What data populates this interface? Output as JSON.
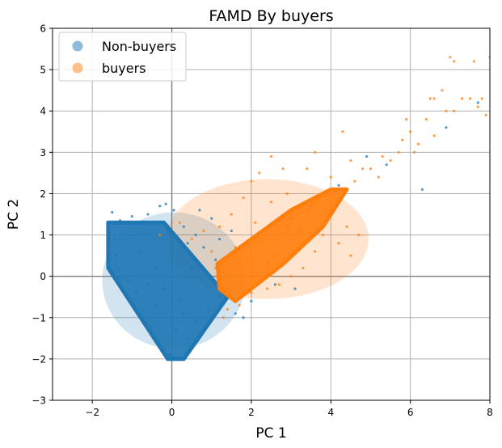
{
  "chart_data": {
    "type": "scatter",
    "title": "FAMD By buyers",
    "xlabel": "PC 1",
    "ylabel": "PC 2",
    "xlim": [
      -3,
      8
    ],
    "ylim": [
      -3,
      6
    ],
    "xticks": [
      -2,
      0,
      2,
      4,
      6,
      8
    ],
    "yticks": [
      -3,
      -2,
      -1,
      0,
      1,
      2,
      3,
      4,
      5,
      6
    ],
    "grid": true,
    "reference_lines": {
      "x": 0,
      "y": 0,
      "color": "#808080"
    },
    "legend": {
      "placement": "top-left",
      "entries": [
        "Non-buyers",
        "buyers"
      ]
    },
    "series": [
      {
        "name": "Non-buyers",
        "color": "#1f77b4",
        "ellipse": {
          "center": [
            0.05,
            -0.1
          ],
          "radius_x": 1.8,
          "radius_y": 1.65,
          "alpha": 0.2
        },
        "dense_region": [
          [
            -1.6,
            1.3
          ],
          [
            -0.2,
            1.3
          ],
          [
            1.4,
            -0.5
          ],
          [
            0.3,
            -2.0
          ],
          [
            -0.1,
            -2.0
          ],
          [
            -1.6,
            0.2
          ]
        ],
        "points": [
          [
            -1.5,
            1.55
          ],
          [
            -1.3,
            1.35
          ],
          [
            -1.0,
            1.45
          ],
          [
            -0.6,
            1.5
          ],
          [
            -0.3,
            1.7
          ],
          [
            -0.15,
            1.75
          ],
          [
            0.05,
            1.6
          ],
          [
            -1.45,
            0.9
          ],
          [
            -1.4,
            0.5
          ],
          [
            -1.3,
            0.2
          ],
          [
            -1.1,
            -0.1
          ],
          [
            -0.9,
            -0.4
          ],
          [
            -0.7,
            -0.8
          ],
          [
            -0.5,
            -1.2
          ],
          [
            -0.3,
            -1.6
          ],
          [
            -0.05,
            -1.9
          ],
          [
            0.2,
            -2.0
          ],
          [
            0.4,
            -1.5
          ],
          [
            0.6,
            -1.1
          ],
          [
            0.9,
            -0.8
          ],
          [
            1.2,
            -0.5
          ],
          [
            1.4,
            -0.3
          ],
          [
            1.3,
            0.1
          ],
          [
            1.1,
            0.4
          ],
          [
            0.8,
            0.7
          ],
          [
            0.6,
            1.0
          ],
          [
            0.3,
            1.2
          ],
          [
            0.0,
            0.5
          ],
          [
            -0.4,
            0.2
          ],
          [
            0.2,
            -0.6
          ],
          [
            -0.8,
            0.6
          ],
          [
            0.5,
            0.2
          ],
          [
            1.6,
            -0.9
          ],
          [
            1.8,
            -1.0
          ],
          [
            2.0,
            -0.6
          ],
          [
            2.4,
            0.3
          ],
          [
            2.9,
            1.2
          ],
          [
            3.5,
            1.7
          ],
          [
            5.4,
            2.7
          ],
          [
            6.3,
            2.1
          ],
          [
            6.9,
            3.6
          ],
          [
            7.7,
            4.2
          ],
          [
            4.9,
            2.9
          ],
          [
            4.2,
            2.2
          ],
          [
            3.1,
            -0.3
          ],
          [
            2.6,
            -0.2
          ],
          [
            1.5,
            1.1
          ],
          [
            1.0,
            1.4
          ],
          [
            0.7,
            1.6
          ],
          [
            -0.2,
            -0.3
          ],
          [
            0.1,
            -1.3
          ],
          [
            -0.6,
            -0.2
          ],
          [
            0.9,
            -0.2
          ],
          [
            -1.0,
            1.0
          ],
          [
            0.4,
            0.8
          ],
          [
            -0.1,
            1.1
          ],
          [
            1.2,
            0.9
          ],
          [
            0.3,
            -0.9
          ],
          [
            -0.4,
            -0.7
          ]
        ]
      },
      {
        "name": "buyers",
        "color": "#ff7f0e",
        "ellipse": {
          "center": [
            2.4,
            0.9
          ],
          "radius_x": 2.55,
          "radius_y": 1.45,
          "alpha": 0.2
        },
        "dense_region": [
          [
            1.15,
            0.3
          ],
          [
            3.0,
            1.6
          ],
          [
            4.0,
            2.1
          ],
          [
            4.4,
            2.1
          ],
          [
            3.8,
            1.2
          ],
          [
            2.8,
            0.3
          ],
          [
            1.6,
            -0.6
          ],
          [
            1.2,
            -0.3
          ]
        ],
        "points": [
          [
            7.0,
            5.3
          ],
          [
            7.6,
            5.2
          ],
          [
            8.0,
            5.3
          ],
          [
            7.1,
            5.2
          ],
          [
            7.3,
            4.3
          ],
          [
            7.5,
            4.3
          ],
          [
            7.8,
            4.3
          ],
          [
            7.7,
            4.1
          ],
          [
            7.9,
            3.9
          ],
          [
            6.6,
            4.3
          ],
          [
            6.5,
            4.3
          ],
          [
            6.8,
            4.5
          ],
          [
            7.1,
            4.0
          ],
          [
            6.9,
            4.0
          ],
          [
            6.4,
            3.8
          ],
          [
            6.0,
            3.5
          ],
          [
            6.2,
            3.2
          ],
          [
            5.8,
            3.3
          ],
          [
            5.7,
            3.0
          ],
          [
            5.5,
            2.8
          ],
          [
            5.3,
            2.9
          ],
          [
            5.0,
            2.6
          ],
          [
            4.8,
            2.6
          ],
          [
            4.6,
            2.3
          ],
          [
            4.5,
            2.8
          ],
          [
            4.3,
            3.5
          ],
          [
            3.6,
            3.0
          ],
          [
            3.4,
            2.6
          ],
          [
            2.8,
            2.6
          ],
          [
            2.5,
            2.9
          ],
          [
            2.0,
            2.3
          ],
          [
            1.5,
            1.5
          ],
          [
            1.2,
            1.2
          ],
          [
            0.8,
            1.1
          ],
          [
            0.5,
            0.9
          ],
          [
            2.2,
            2.5
          ],
          [
            2.5,
            1.8
          ],
          [
            3.0,
            1.4
          ],
          [
            4.2,
            1.9
          ],
          [
            4.7,
            1.0
          ],
          [
            4.5,
            0.5
          ],
          [
            4.2,
            0.8
          ],
          [
            3.8,
            1.0
          ],
          [
            3.3,
            0.2
          ],
          [
            3.0,
            0.0
          ],
          [
            2.7,
            -0.2
          ],
          [
            2.4,
            -0.3
          ],
          [
            2.0,
            -0.4
          ],
          [
            1.7,
            -0.7
          ],
          [
            1.4,
            -0.8
          ],
          [
            1.3,
            -1.0
          ],
          [
            1.8,
            1.9
          ],
          [
            1.0,
            0.6
          ],
          [
            3.6,
            0.6
          ],
          [
            2.2,
            0.9
          ],
          [
            1.9,
            0.4
          ],
          [
            5.2,
            2.4
          ],
          [
            4.0,
            2.4
          ],
          [
            3.9,
            1.6
          ],
          [
            6.1,
            3.0
          ],
          [
            6.6,
            3.4
          ],
          [
            5.9,
            3.8
          ],
          [
            0.2,
            1.3
          ],
          [
            -0.3,
            1.0
          ],
          [
            2.6,
            0.5
          ],
          [
            3.2,
            1.1
          ],
          [
            1.5,
            -0.2
          ],
          [
            1.1,
            0.2
          ],
          [
            4.4,
            1.2
          ],
          [
            2.9,
            2.0
          ],
          [
            3.4,
            1.6
          ],
          [
            2.1,
            1.3
          ],
          [
            1.6,
            0.7
          ]
        ]
      }
    ]
  }
}
